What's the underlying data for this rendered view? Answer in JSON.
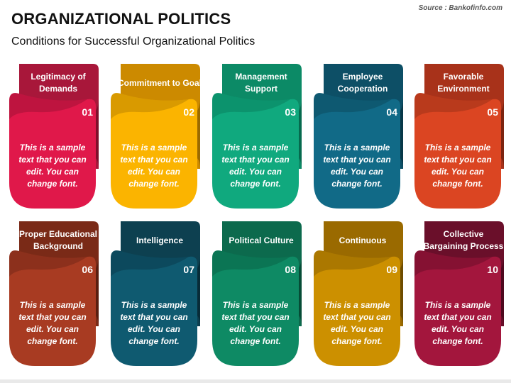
{
  "header": {
    "title": "ORGANIZATIONAL POLITICS",
    "subtitle": "Conditions for Successful Organizational Politics",
    "source": "Source : Bankofinfo.com"
  },
  "cards": [
    {
      "label": "Legitimacy of Demands",
      "number": "01",
      "body": "This is a sample text that you can edit. You can change font.",
      "tab_color": "#a8173a",
      "panel_color": "#e0184a",
      "shade_color": "#7f0f2b"
    },
    {
      "label": "Commitment to Goal",
      "number": "02",
      "body": "This is a sample text that you can edit. You can change font.",
      "tab_color": "#cc8a00",
      "panel_color": "#fbb400",
      "shade_color": "#9a6a00"
    },
    {
      "label": "Management Support",
      "number": "03",
      "body": "This is a sample text that you can edit. You can change font.",
      "tab_color": "#0c8a66",
      "panel_color": "#10a97e",
      "shade_color": "#066a4e"
    },
    {
      "label": "Employee Cooperation",
      "number": "04",
      "body": "This is a sample text that you can edit. You can change font.",
      "tab_color": "#0d4f66",
      "panel_color": "#116a87",
      "shade_color": "#083848"
    },
    {
      "label": "Favorable Environment",
      "number": "05",
      "body": "This is a sample text that you can edit. You can change font.",
      "tab_color": "#a8321a",
      "panel_color": "#db4522",
      "shade_color": "#7c2411"
    },
    {
      "label": "Proper Educational Background",
      "number": "06",
      "body": "This is a sample text that you can edit. You can change font.",
      "tab_color": "#7a2a17",
      "panel_color": "#a83b22",
      "shade_color": "#5a1e10"
    },
    {
      "label": "Intelligence",
      "number": "07",
      "body": "This is a sample text that you can edit. You can change font.",
      "tab_color": "#0d4050",
      "panel_color": "#0f5a70",
      "shade_color": "#082c38"
    },
    {
      "label": "Political Culture",
      "number": "08",
      "body": "This is a sample text that you can edit. You can change font.",
      "tab_color": "#0c6a4d",
      "panel_color": "#0e8a64",
      "shade_color": "#064c36"
    },
    {
      "label": "Continuous",
      "number": "09",
      "body": "This is a sample text that you can edit. You can change font.",
      "tab_color": "#9a6a00",
      "panel_color": "#cc9000",
      "shade_color": "#6e4c00"
    },
    {
      "label": "Collective Bargaining Process",
      "number": "10",
      "body": "This is a sample text that you can edit. You can change font.",
      "tab_color": "#6a0f2a",
      "panel_color": "#a3163d",
      "shade_color": "#4e0a1f"
    }
  ]
}
